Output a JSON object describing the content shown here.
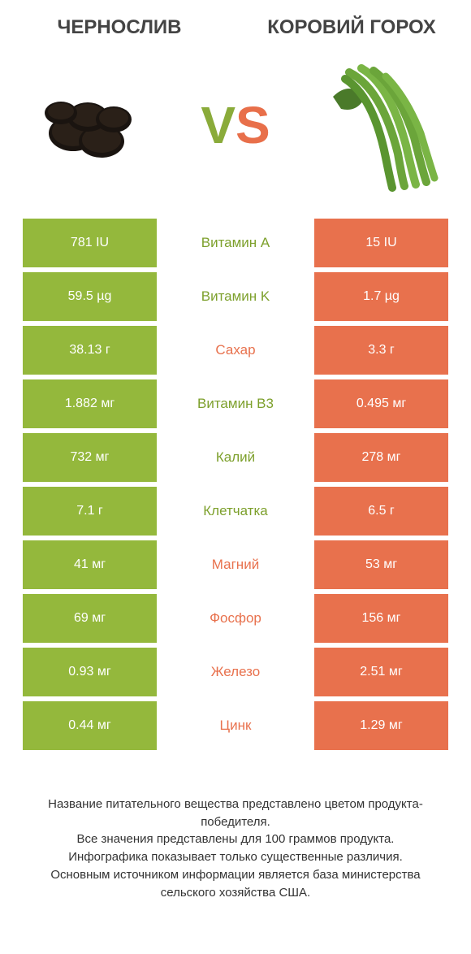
{
  "colors": {
    "green": "#94b83c",
    "orange": "#e8714d",
    "green_text": "#7da02c",
    "orange_text": "#e8714d",
    "title_text": "#444444",
    "footer_text": "#333333"
  },
  "header": {
    "left_title": "ЧЕРНОСЛИВ",
    "right_title": "КОРОВИЙ ГОРОХ",
    "vs_v": "V",
    "vs_s": "S"
  },
  "rows": [
    {
      "label": "Витамин A",
      "left": "781 IU",
      "right": "15 IU",
      "winner": "left"
    },
    {
      "label": "Витамин K",
      "left": "59.5 µg",
      "right": "1.7 µg",
      "winner": "left"
    },
    {
      "label": "Сахар",
      "left": "38.13 г",
      "right": "3.3 г",
      "winner": "right"
    },
    {
      "label": "Витамин B3",
      "left": "1.882 мг",
      "right": "0.495 мг",
      "winner": "left"
    },
    {
      "label": "Калий",
      "left": "732 мг",
      "right": "278 мг",
      "winner": "left"
    },
    {
      "label": "Клетчатка",
      "left": "7.1 г",
      "right": "6.5 г",
      "winner": "left"
    },
    {
      "label": "Магний",
      "left": "41 мг",
      "right": "53 мг",
      "winner": "right"
    },
    {
      "label": "Фосфор",
      "left": "69 мг",
      "right": "156 мг",
      "winner": "right"
    },
    {
      "label": "Железо",
      "left": "0.93 мг",
      "right": "2.51 мг",
      "winner": "right"
    },
    {
      "label": "Цинк",
      "left": "0.44 мг",
      "right": "1.29 мг",
      "winner": "right"
    }
  ],
  "footer": {
    "line1": "Название питательного вещества представлено цветом продукта-победителя.",
    "line2": "Все значения представлены для 100 граммов продукта.",
    "line3": "Инфографика показывает только существенные различия.",
    "line4": "Основным источником информации является база министерства сельского хозяйства США."
  }
}
